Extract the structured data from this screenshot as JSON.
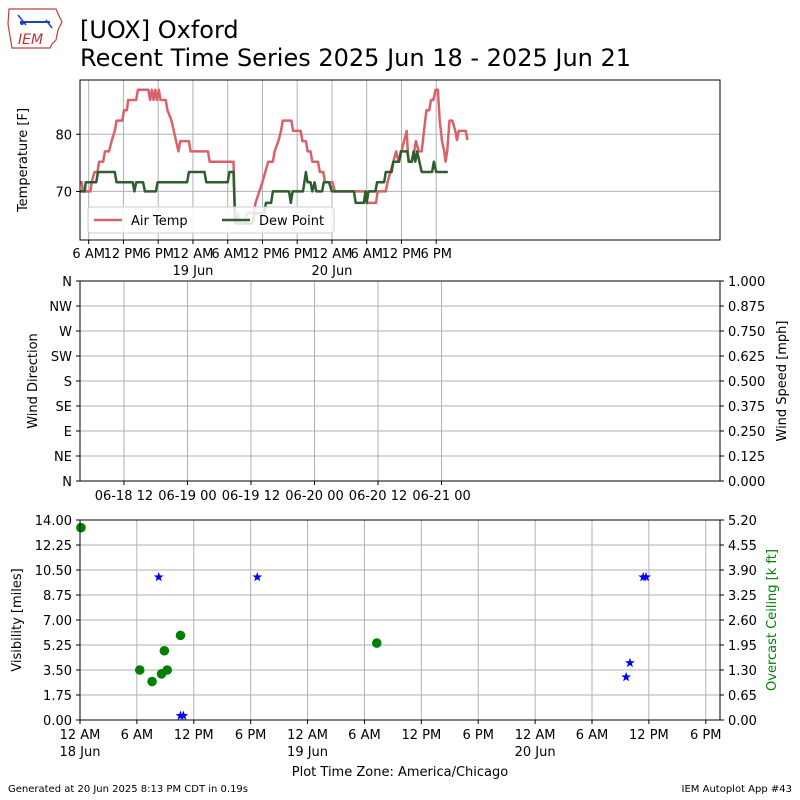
{
  "header": {
    "logo_text": "IEM",
    "title_line1": "[UOX] Oxford",
    "title_line2": "Recent Time Series 2025 Jun 18 - 2025 Jun 21"
  },
  "colors": {
    "air_temp": "#d9626a",
    "dew_point": "#2e5e2e",
    "visibility": "#0000ff",
    "ceiling": "#008000",
    "grid": "#b0b0b0"
  },
  "chart_data": [
    {
      "type": "line",
      "name": "temperature",
      "ylabel": "Temperature [F]",
      "xlim": [
        4.5,
        115
      ],
      "ylim": [
        61.5,
        89.5
      ],
      "yticks": [
        70,
        80
      ],
      "xticks": [
        {
          "x": 6,
          "label": "6 AM"
        },
        {
          "x": 12,
          "label": "12 PM"
        },
        {
          "x": 18,
          "label": "6 PM"
        },
        {
          "x": 24,
          "label": "12 AM",
          "sub": "19 Jun"
        },
        {
          "x": 30,
          "label": "6 AM"
        },
        {
          "x": 36,
          "label": "12 PM"
        },
        {
          "x": 42,
          "label": "6 PM"
        },
        {
          "x": 48,
          "label": "12 AM",
          "sub": "20 Jun"
        },
        {
          "x": 54,
          "label": "6 AM"
        },
        {
          "x": 60,
          "label": "12 PM"
        },
        {
          "x": 66,
          "label": "6 PM"
        }
      ],
      "legend": {
        "placement": "lower-left",
        "entries": [
          "Air Temp",
          "Dew Point"
        ]
      },
      "series": [
        {
          "name": "Air Temp",
          "color_key": "air_temp",
          "points": [
            [
              0,
              73.4
            ],
            [
              1.5,
              73.4
            ],
            [
              1.6,
              71.6
            ],
            [
              4.8,
              71.6
            ],
            [
              5,
              70.0
            ],
            [
              6.3,
              70.0
            ],
            [
              6.5,
              71.6
            ],
            [
              7,
              73.4
            ],
            [
              7.5,
              73.4
            ],
            [
              7.8,
              75.2
            ],
            [
              8.5,
              75.2
            ],
            [
              8.8,
              77.0
            ],
            [
              9.5,
              77.0
            ],
            [
              10,
              79.0
            ],
            [
              10.5,
              80.6
            ],
            [
              10.8,
              82.4
            ],
            [
              11.8,
              82.4
            ],
            [
              12.1,
              84.2
            ],
            [
              12.6,
              84.2
            ],
            [
              12.8,
              86.0
            ],
            [
              14.2,
              86.0
            ],
            [
              14.5,
              87.8
            ],
            [
              16.3,
              87.8
            ],
            [
              16.6,
              86.0
            ],
            [
              16.9,
              87.8
            ],
            [
              17.2,
              86.0
            ],
            [
              17.5,
              87.8
            ],
            [
              17.8,
              86.0
            ],
            [
              18.1,
              87.8
            ],
            [
              18.4,
              86.0
            ],
            [
              19.3,
              86.0
            ],
            [
              19.6,
              84.2
            ],
            [
              20.3,
              82.4
            ],
            [
              20.7,
              80.6
            ],
            [
              21.1,
              78.8
            ],
            [
              21.5,
              77.0
            ],
            [
              21.8,
              78.8
            ],
            [
              23.3,
              78.8
            ],
            [
              23.6,
              77.0
            ],
            [
              26.6,
              77.0
            ],
            [
              26.9,
              75.2
            ],
            [
              31.0,
              75.2
            ],
            [
              31.3,
              64.4
            ],
            [
              31.8,
              66.2
            ],
            [
              32.0,
              64.4
            ],
            [
              33.0,
              64.4
            ],
            [
              33.3,
              66.2
            ],
            [
              34.5,
              66.2
            ],
            [
              34.8,
              68.0
            ],
            [
              36.0,
              71.6
            ],
            [
              36.5,
              73.4
            ],
            [
              37.0,
              75.2
            ],
            [
              37.8,
              75.2
            ],
            [
              38.1,
              77.0
            ],
            [
              38.8,
              79.0
            ],
            [
              39.2,
              80.6
            ],
            [
              39.5,
              82.4
            ],
            [
              41.0,
              82.4
            ],
            [
              41.3,
              80.6
            ],
            [
              42.6,
              80.6
            ],
            [
              42.9,
              78.8
            ],
            [
              43.5,
              78.8
            ],
            [
              43.8,
              77.0
            ],
            [
              44.3,
              77.0
            ],
            [
              44.6,
              75.2
            ],
            [
              45.6,
              75.2
            ],
            [
              45.9,
              73.4
            ],
            [
              46.5,
              73.4
            ],
            [
              46.8,
              71.6
            ],
            [
              48.1,
              71.6
            ],
            [
              48.5,
              70.0
            ],
            [
              53.8,
              70.0
            ],
            [
              54.0,
              68.0
            ],
            [
              55.6,
              68.0
            ],
            [
              55.9,
              70.0
            ],
            [
              57.3,
              70.0
            ],
            [
              57.6,
              71.6
            ],
            [
              58.1,
              73.4
            ],
            [
              58.6,
              75.2
            ],
            [
              59.1,
              77.0
            ],
            [
              59.5,
              75.2
            ],
            [
              60.0,
              77.0
            ],
            [
              60.5,
              79.0
            ],
            [
              60.9,
              80.6
            ],
            [
              61.2,
              75.2
            ],
            [
              61.7,
              75.2
            ],
            [
              62.2,
              77.0
            ],
            [
              62.5,
              78.8
            ],
            [
              63.0,
              77.0
            ],
            [
              63.5,
              77.0
            ],
            [
              63.9,
              80.6
            ],
            [
              64.3,
              84.2
            ],
            [
              64.8,
              84.2
            ],
            [
              65.1,
              86.0
            ],
            [
              65.5,
              86.0
            ],
            [
              65.9,
              87.8
            ],
            [
              66.3,
              87.8
            ],
            [
              66.6,
              82.4
            ],
            [
              67.0,
              78.8
            ],
            [
              67.4,
              77.0
            ],
            [
              67.6,
              75.2
            ],
            [
              67.9,
              77.0
            ],
            [
              68.3,
              82.4
            ],
            [
              68.8,
              82.4
            ],
            [
              69.3,
              80.6
            ],
            [
              69.6,
              79.0
            ],
            [
              69.9,
              80.6
            ],
            [
              71.1,
              80.6
            ],
            [
              71.4,
              79.0
            ]
          ]
        },
        {
          "name": "Dew Point",
          "color_key": "dew_point",
          "points": [
            [
              0,
              70.0
            ],
            [
              5.3,
              70.0
            ],
            [
              5.5,
              71.6
            ],
            [
              7.3,
              71.6
            ],
            [
              7.6,
              73.4
            ],
            [
              10.5,
              73.4
            ],
            [
              10.8,
              71.6
            ],
            [
              13.6,
              71.6
            ],
            [
              13.9,
              70.0
            ],
            [
              14.2,
              71.6
            ],
            [
              15.4,
              71.6
            ],
            [
              15.7,
              70.0
            ],
            [
              17.6,
              70.0
            ],
            [
              17.9,
              71.6
            ],
            [
              23.0,
              71.6
            ],
            [
              23.3,
              73.4
            ],
            [
              26.0,
              73.4
            ],
            [
              26.3,
              71.6
            ],
            [
              30.0,
              71.6
            ],
            [
              30.3,
              73.4
            ],
            [
              31.0,
              73.4
            ],
            [
              31.3,
              64.4
            ],
            [
              34.3,
              64.4
            ],
            [
              34.6,
              66.2
            ],
            [
              36.3,
              66.2
            ],
            [
              36.6,
              68.0
            ],
            [
              37.5,
              68.0
            ],
            [
              37.8,
              70.0
            ],
            [
              40.6,
              70.0
            ],
            [
              40.9,
              68.0
            ],
            [
              41.2,
              70.0
            ],
            [
              43.0,
              70.0
            ],
            [
              43.5,
              73.4
            ],
            [
              43.8,
              71.6
            ],
            [
              44.3,
              71.6
            ],
            [
              44.6,
              70.0
            ],
            [
              45.0,
              71.6
            ],
            [
              45.3,
              70.0
            ],
            [
              46.3,
              70.0
            ],
            [
              46.6,
              71.6
            ],
            [
              47.5,
              71.6
            ],
            [
              48.0,
              70.0
            ],
            [
              51.8,
              70.0
            ],
            [
              52.1,
              68.0
            ],
            [
              53.5,
              68.0
            ],
            [
              53.8,
              70.0
            ],
            [
              54.0,
              68.0
            ],
            [
              54.3,
              70.0
            ],
            [
              55.5,
              70.0
            ],
            [
              55.8,
              71.6
            ],
            [
              57.0,
              71.6
            ],
            [
              57.3,
              73.4
            ],
            [
              58.3,
              73.4
            ],
            [
              58.6,
              75.2
            ],
            [
              59.6,
              75.2
            ],
            [
              59.9,
              77.0
            ],
            [
              61.0,
              77.0
            ],
            [
              61.3,
              75.2
            ],
            [
              61.8,
              75.2
            ],
            [
              62.1,
              77.0
            ],
            [
              62.4,
              75.2
            ],
            [
              62.7,
              77.0
            ],
            [
              63.5,
              73.4
            ],
            [
              65.3,
              73.4
            ],
            [
              65.6,
              75.2
            ],
            [
              66.0,
              73.4
            ],
            [
              68.0,
              73.4
            ]
          ]
        }
      ]
    },
    {
      "type": "scatter",
      "name": "wind",
      "ylabel": "Wind Direction",
      "y2label": "Wind Speed [mph]",
      "xlim": [
        3.7,
        124.6
      ],
      "yticks_left": [
        "N",
        "NE",
        "E",
        "SE",
        "S",
        "SW",
        "W",
        "NW",
        "N"
      ],
      "yticks_right": [
        "0.000",
        "0.125",
        "0.250",
        "0.375",
        "0.500",
        "0.625",
        "0.750",
        "0.875",
        "1.000"
      ],
      "xticks": [
        {
          "x": 12,
          "label": "06-18 12"
        },
        {
          "x": 24,
          "label": "06-19 00"
        },
        {
          "x": 36,
          "label": "06-19 12"
        },
        {
          "x": 48,
          "label": "06-20 00"
        },
        {
          "x": 60,
          "label": "06-20 12"
        },
        {
          "x": 72,
          "label": "06-21 00"
        }
      ],
      "series": []
    },
    {
      "type": "scatter",
      "name": "visibility-ceiling",
      "ylabel": "Visibility [miles]",
      "y2label": "Overcast Ceiling [k ft]",
      "xlabel": "Plot Time Zone: America/Chicago",
      "xlim": [
        0,
        67.5
      ],
      "ylim": [
        0,
        14
      ],
      "y2lim": [
        0,
        5.2
      ],
      "yticks_left": [
        "0.00",
        "1.75",
        "3.50",
        "5.25",
        "7.00",
        "8.75",
        "10.50",
        "12.25",
        "14.00"
      ],
      "yticks_right": [
        "0.00",
        "0.65",
        "1.30",
        "1.95",
        "2.60",
        "3.25",
        "3.90",
        "4.55",
        "5.20"
      ],
      "xticks": [
        {
          "x": 0,
          "label": "12 AM",
          "sub": "18 Jun"
        },
        {
          "x": 6,
          "label": "6 AM"
        },
        {
          "x": 12,
          "label": "12 PM"
        },
        {
          "x": 18,
          "label": "6 PM"
        },
        {
          "x": 24,
          "label": "12 AM",
          "sub": "19 Jun"
        },
        {
          "x": 30,
          "label": "6 AM"
        },
        {
          "x": 36,
          "label": "12 PM"
        },
        {
          "x": 42,
          "label": "6 PM"
        },
        {
          "x": 48,
          "label": "12 AM",
          "sub": "20 Jun"
        },
        {
          "x": 54,
          "label": "6 AM"
        },
        {
          "x": 60,
          "label": "12 PM"
        },
        {
          "x": 66,
          "label": "6 PM"
        }
      ],
      "visibility_points": [
        [
          8.3,
          10.0
        ],
        [
          10.6,
          0.3
        ],
        [
          10.9,
          0.3
        ],
        [
          18.7,
          10.0
        ],
        [
          57.6,
          3.0
        ],
        [
          58.0,
          4.0
        ],
        [
          59.4,
          10.0
        ],
        [
          59.7,
          10.0
        ]
      ],
      "ceiling_points": [
        [
          0.1,
          5.0
        ],
        [
          6.3,
          1.3
        ],
        [
          7.6,
          1.0
        ],
        [
          8.6,
          1.2
        ],
        [
          8.9,
          1.8
        ],
        [
          9.2,
          1.3
        ],
        [
          10.6,
          2.2
        ],
        [
          31.3,
          2.0
        ]
      ]
    }
  ],
  "footer": {
    "left": "Generated at 20 Jun 2025 8:13 PM CDT in 0.19s",
    "right": "IEM Autoplot App #43"
  }
}
